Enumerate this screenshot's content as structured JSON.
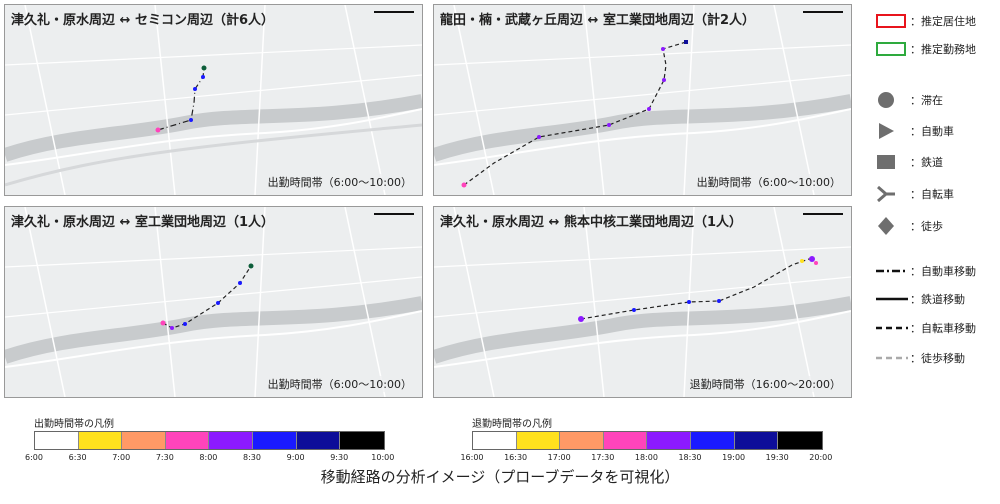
{
  "panels": [
    {
      "title": "津久礼・原水周辺 ↔ セミコン周辺（計6人）",
      "time": "出勤時間帯（6:00～10:00）"
    },
    {
      "title": "龍田・楠・武蔵ヶ丘周辺 ↔ 室工業団地周辺（計2人）",
      "time": "出勤時間帯（6:00～10:00）"
    },
    {
      "title": "津久礼・原水周辺 ↔ 室工業団地周辺（1人）",
      "time": "出勤時間帯（6:00～10:00）"
    },
    {
      "title": "津久礼・原水周辺 ↔ 熊本中核工業団地周辺（1人）",
      "time": "退勤時間帯（16:00～20:00）"
    }
  ],
  "legend": {
    "residence": "：推定居住地",
    "workplace": "：推定勤務地",
    "stay": "：滞在",
    "car": "：自動車",
    "rail": "：鉄道",
    "bicycle": "：自転車",
    "walk": "：徒歩",
    "car_move": "：自動車移動",
    "rail_move": "：鉄道移動",
    "bicycle_move": "：自転車移動",
    "walk_move": "：徒歩移動",
    "colors": {
      "residence": "#e8141c",
      "workplace": "#2eaa3e",
      "symbol": "#6e6e6e",
      "walk_line": "#aaaaaa"
    }
  },
  "timelines": {
    "commute": {
      "title": "出勤時間帯の凡例",
      "ticks": [
        "6:00",
        "6:30",
        "7:00",
        "7:30",
        "8:00",
        "8:30",
        "9:00",
        "9:30",
        "10:00"
      ]
    },
    "return": {
      "title": "退勤時間帯の凡例",
      "ticks": [
        "16:00",
        "16:30",
        "17:00",
        "17:30",
        "18:00",
        "18:30",
        "19:00",
        "19:30",
        "20:00"
      ]
    },
    "colors": [
      "#ffffff",
      "#ffe11e",
      "#ff9966",
      "#ff44bb",
      "#8c1aff",
      "#1a1aff",
      "#0d0d99",
      "#000000"
    ]
  },
  "caption": "移動経路の分析イメージ（プローブデータを可視化）"
}
